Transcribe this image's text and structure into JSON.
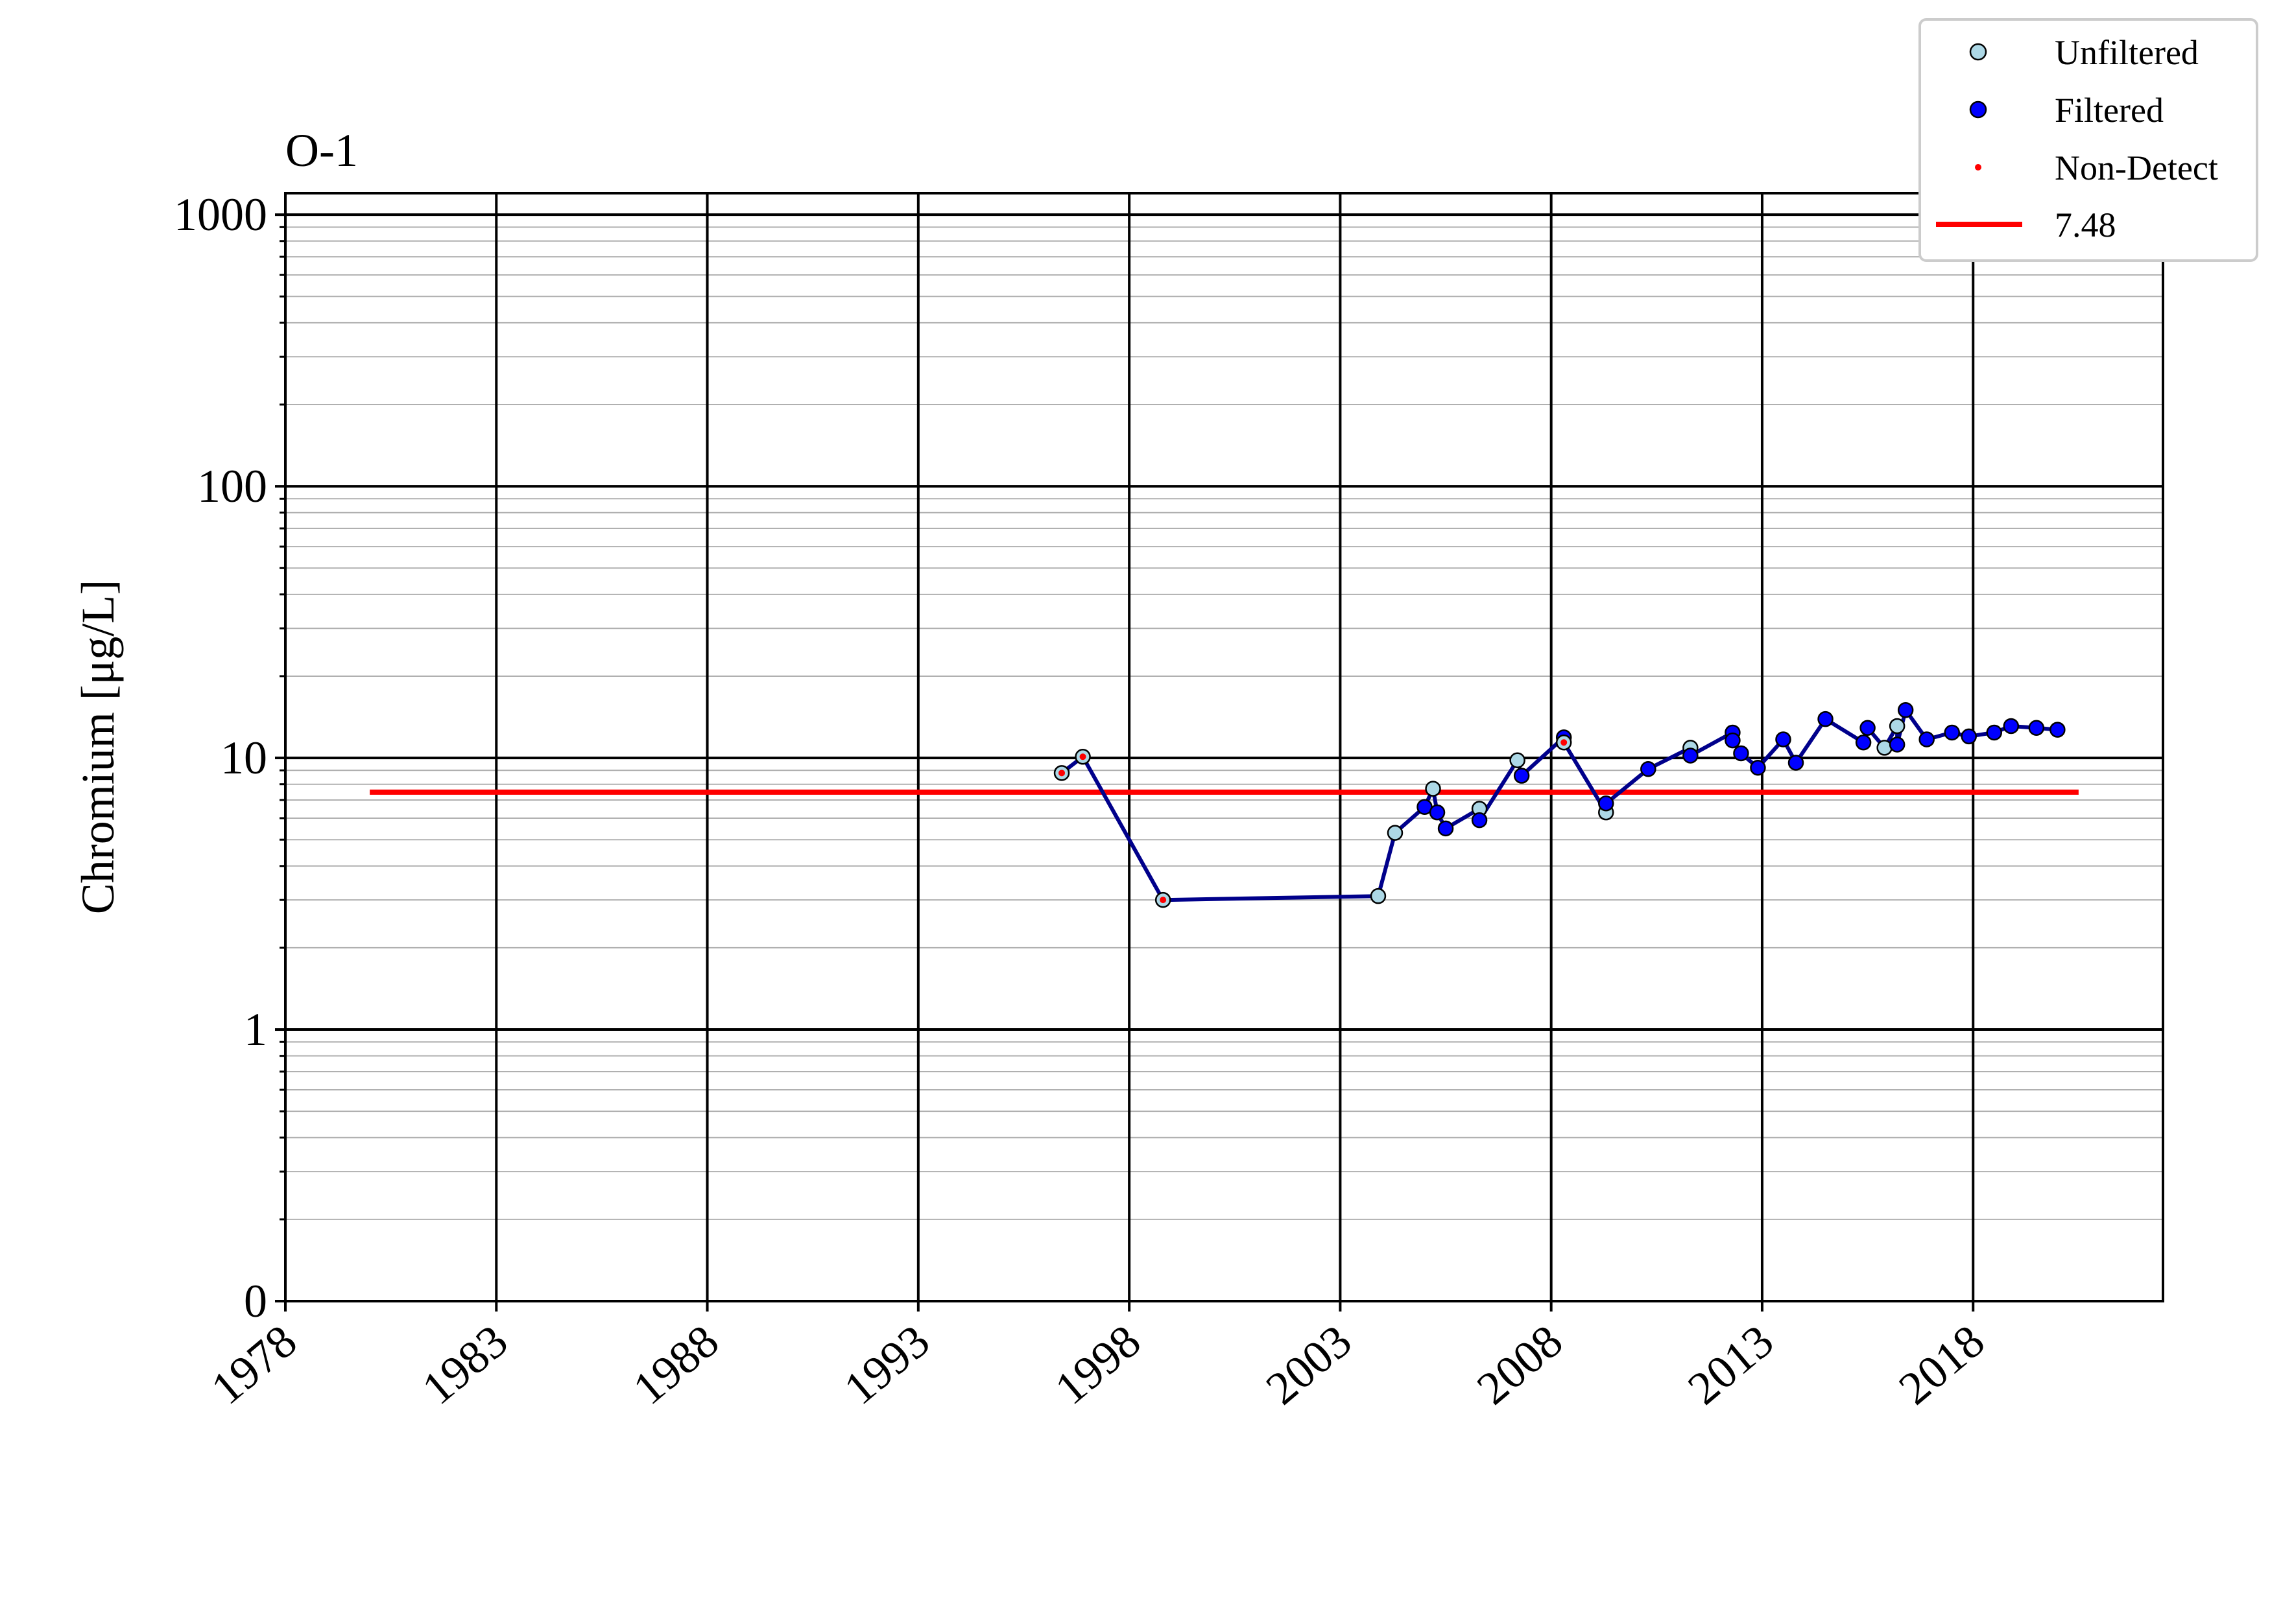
{
  "chart_data": {
    "type": "line",
    "title": "O-1",
    "xlabel": "",
    "ylabel": "Chromium [μg/L]",
    "x_axis": {
      "type": "date",
      "range": [
        1978.0,
        2022.5
      ],
      "tick_labels": [
        "1978",
        "1983",
        "1988",
        "1993",
        "1998",
        "2003",
        "2008",
        "2013",
        "2018"
      ]
    },
    "y_axis": {
      "scale": "log",
      "range": [
        0.1,
        1200
      ],
      "tick_values": [
        0.1,
        1,
        10,
        100,
        1000
      ],
      "tick_labels": [
        "0",
        "1",
        "10",
        "100",
        "1000"
      ]
    },
    "grid": true,
    "legend_placement": "top-right",
    "legend": [
      {
        "label": "Unfiltered",
        "marker": "circle",
        "color": "#add8e6"
      },
      {
        "label": "Filtered",
        "marker": "circle",
        "color": "#0000ff"
      },
      {
        "label": "Non-Detect",
        "marker": "dot",
        "color": "#ff0000"
      },
      {
        "label": "7.48",
        "marker": "line",
        "color": "#ff0000"
      }
    ],
    "colors": {
      "series_line": "#00008b",
      "unfiltered": "#add8e6",
      "filtered": "#0000ff",
      "non_detect": "#ff0000",
      "threshold": "#ff0000"
    },
    "threshold": {
      "value": 7.48,
      "x_start": 1980.0,
      "x_end": 2020.5
    },
    "series": [
      {
        "points": [
          {
            "x": 1996.4,
            "y": 8.8,
            "type": "unfiltered",
            "nd": true
          },
          {
            "x": 1996.9,
            "y": 10.1,
            "type": "unfiltered",
            "nd": true
          },
          {
            "x": 1998.8,
            "y": 3.0,
            "type": "unfiltered",
            "nd": true
          },
          {
            "x": 2003.9,
            "y": 3.1,
            "type": "unfiltered",
            "nd": false
          },
          {
            "x": 2004.3,
            "y": 5.3,
            "type": "unfiltered",
            "nd": false
          },
          {
            "x": 2005.0,
            "y": 6.6,
            "type": "filtered",
            "nd": false
          },
          {
            "x": 2005.2,
            "y": 7.7,
            "type": "unfiltered",
            "nd": false
          },
          {
            "x": 2005.3,
            "y": 6.3,
            "type": "filtered",
            "nd": false
          },
          {
            "x": 2005.5,
            "y": 5.5,
            "type": "filtered",
            "nd": false
          },
          {
            "x": 2006.3,
            "y": 6.5,
            "type": "unfiltered",
            "nd": false
          },
          {
            "x": 2006.3,
            "y": 5.9,
            "type": "filtered",
            "nd": false
          },
          {
            "x": 2007.2,
            "y": 9.8,
            "type": "unfiltered",
            "nd": false
          },
          {
            "x": 2007.3,
            "y": 8.6,
            "type": "filtered",
            "nd": false
          },
          {
            "x": 2008.3,
            "y": 11.9,
            "type": "filtered",
            "nd": false
          },
          {
            "x": 2008.3,
            "y": 11.4,
            "type": "unfiltered",
            "nd": true
          },
          {
            "x": 2009.3,
            "y": 6.3,
            "type": "unfiltered",
            "nd": false
          },
          {
            "x": 2009.3,
            "y": 6.8,
            "type": "filtered",
            "nd": false
          },
          {
            "x": 2010.3,
            "y": 9.1,
            "type": "filtered",
            "nd": false
          },
          {
            "x": 2011.3,
            "y": 10.9,
            "type": "unfiltered",
            "nd": false
          },
          {
            "x": 2011.3,
            "y": 10.2,
            "type": "filtered",
            "nd": false
          },
          {
            "x": 2012.3,
            "y": 12.4,
            "type": "filtered",
            "nd": false
          },
          {
            "x": 2012.3,
            "y": 11.6,
            "type": "filtered",
            "nd": false
          },
          {
            "x": 2012.5,
            "y": 10.4,
            "type": "filtered",
            "nd": false
          },
          {
            "x": 2012.9,
            "y": 9.2,
            "type": "filtered",
            "nd": false
          },
          {
            "x": 2013.5,
            "y": 11.7,
            "type": "filtered",
            "nd": false
          },
          {
            "x": 2013.8,
            "y": 9.6,
            "type": "filtered",
            "nd": false
          },
          {
            "x": 2014.5,
            "y": 13.9,
            "type": "filtered",
            "nd": false
          },
          {
            "x": 2015.4,
            "y": 11.4,
            "type": "filtered",
            "nd": false
          },
          {
            "x": 2015.5,
            "y": 12.9,
            "type": "filtered",
            "nd": false
          },
          {
            "x": 2015.9,
            "y": 10.9,
            "type": "unfiltered",
            "nd": false
          },
          {
            "x": 2016.2,
            "y": 13.1,
            "type": "unfiltered",
            "nd": false
          },
          {
            "x": 2016.2,
            "y": 11.2,
            "type": "filtered",
            "nd": false
          },
          {
            "x": 2016.4,
            "y": 15.0,
            "type": "filtered",
            "nd": false
          },
          {
            "x": 2016.9,
            "y": 11.7,
            "type": "filtered",
            "nd": false
          },
          {
            "x": 2017.5,
            "y": 12.4,
            "type": "filtered",
            "nd": false
          },
          {
            "x": 2017.9,
            "y": 12.0,
            "type": "filtered",
            "nd": false
          },
          {
            "x": 2018.5,
            "y": 12.4,
            "type": "filtered",
            "nd": false
          },
          {
            "x": 2018.9,
            "y": 13.1,
            "type": "filtered",
            "nd": false
          },
          {
            "x": 2019.5,
            "y": 12.9,
            "type": "filtered",
            "nd": false
          },
          {
            "x": 2020.0,
            "y": 12.7,
            "type": "filtered",
            "nd": false
          }
        ]
      }
    ]
  }
}
